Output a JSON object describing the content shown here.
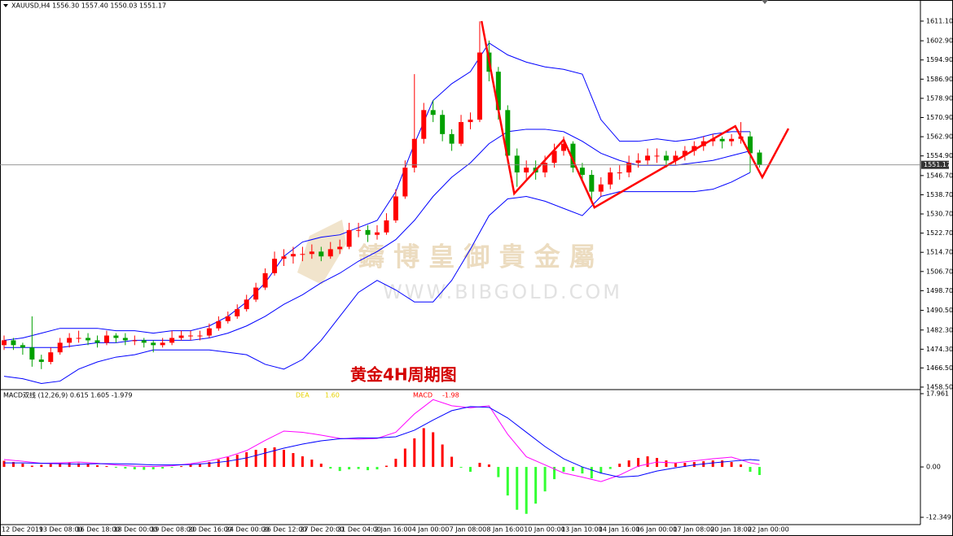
{
  "watermark": {
    "brand": "鑄 博 皇 御 貴 金 屬",
    "url": "WWW.BIBGOLD.COM"
  },
  "chart_data": [
    {
      "type": "candlestick",
      "title": "XAUUSD,H4 1556.30 1557.40 1550.03 1551.17",
      "annotation": "黄金4H周期图",
      "categories": [
        "12 Dec 2019",
        null,
        null,
        null,
        "13 Dec 08:00",
        null,
        null,
        null,
        "16 Dec 18:00",
        null,
        null,
        null,
        "18 Dec 00:00",
        null,
        null,
        null,
        "19 Dec 08:00",
        null,
        null,
        null,
        "20 Dec 16:00",
        null,
        null,
        null,
        "24 Dec 00:00",
        null,
        null,
        null,
        "26 Dec 12:00",
        null,
        null,
        null,
        "27 Dec 20:00",
        null,
        null,
        null,
        "31 Dec 04:00",
        null,
        null,
        null,
        "2 Jan 16:00",
        null,
        null,
        null,
        "4 Jan 00:00",
        null,
        null,
        null,
        "7 Jan 08:00",
        null,
        null,
        null,
        "8 Jan 16:00",
        null,
        null,
        null,
        "10 Jan 00:00",
        null,
        null,
        null,
        "13 Jan 10:00",
        null,
        null,
        null,
        "14 Jan 16:00",
        null,
        null,
        null,
        "16 Jan 00:00",
        null,
        null,
        null,
        "17 Jan 08:00",
        null,
        null,
        null,
        "20 Jan 18:00",
        null,
        null,
        null,
        "22 Jan 00:00",
        null
      ],
      "open": [
        1476,
        1478,
        1476,
        1475,
        1470,
        1469,
        1473,
        1477,
        1479,
        1479,
        1478,
        1477,
        1480,
        1479,
        1478,
        1478,
        1477,
        1476,
        1477,
        1479,
        1480,
        1480,
        1480,
        1483,
        1486,
        1488,
        1491,
        1495,
        1500,
        1506,
        1512,
        1513,
        1514,
        1514,
        1515,
        1513,
        1516,
        1517,
        1524,
        1524,
        1522,
        1523,
        1528,
        1538,
        1550,
        1562,
        1574,
        1572,
        1564,
        1560,
        1569,
        1570,
        1598,
        1590,
        1574,
        1555,
        1548,
        1550,
        1548,
        1552,
        1557,
        1560,
        1550,
        1547,
        1540,
        1543,
        1548,
        1548,
        1552,
        1553,
        1555,
        1555,
        1553,
        1555,
        1557,
        1559,
        1561,
        1562,
        1561,
        1562,
        1563,
        1556.3
      ],
      "high": [
        1480,
        1479,
        1477,
        1488,
        1472,
        1475,
        1479,
        1481,
        1482,
        1481,
        1480,
        1482,
        1481,
        1481,
        1480,
        1479,
        1478,
        1479,
        1482,
        1482,
        1482,
        1482,
        1485,
        1488,
        1490,
        1493,
        1497,
        1502,
        1508,
        1515,
        1516,
        1517,
        1517,
        1518,
        1517,
        1519,
        1520,
        1527,
        1527,
        1526,
        1526,
        1531,
        1541,
        1553,
        1589,
        1577,
        1578,
        1574,
        1566,
        1572,
        1573,
        1611,
        1603,
        1592,
        1576,
        1558,
        1553,
        1553,
        1555,
        1560,
        1563,
        1561,
        1552,
        1549,
        1546,
        1550,
        1551,
        1555,
        1556,
        1558,
        1558,
        1557,
        1557,
        1559,
        1561,
        1563,
        1564,
        1563,
        1564,
        1569,
        1565,
        1557.4
      ],
      "low": [
        1474,
        1474,
        1472,
        1467,
        1466,
        1468,
        1472,
        1475,
        1477,
        1476,
        1475,
        1476,
        1477,
        1476,
        1476,
        1475,
        1473,
        1475,
        1476,
        1478,
        1478,
        1478,
        1479,
        1482,
        1485,
        1487,
        1490,
        1494,
        1499,
        1505,
        1509,
        1510,
        1511,
        1512,
        1511,
        1512,
        1514,
        1516,
        1521,
        1519,
        1520,
        1522,
        1527,
        1537,
        1548,
        1560,
        1569,
        1561,
        1557,
        1559,
        1566,
        1569,
        1586,
        1570,
        1552,
        1542,
        1545,
        1545,
        1546,
        1550,
        1555,
        1548,
        1544,
        1536,
        1538,
        1541,
        1545,
        1546,
        1550,
        1551,
        1552,
        1550,
        1551,
        1553,
        1555,
        1557,
        1559,
        1558,
        1559,
        1560,
        1548,
        1550.03
      ],
      "close": [
        1478,
        1476,
        1475,
        1470,
        1469,
        1473,
        1477,
        1479,
        1479,
        1478,
        1477,
        1480,
        1479,
        1478,
        1478,
        1477,
        1476,
        1477,
        1479,
        1480,
        1480,
        1480,
        1483,
        1486,
        1488,
        1491,
        1495,
        1500,
        1506,
        1512,
        1513,
        1514,
        1514,
        1515,
        1513,
        1516,
        1517,
        1524,
        1524,
        1522,
        1523,
        1528,
        1538,
        1550,
        1562,
        1574,
        1572,
        1564,
        1560,
        1569,
        1570,
        1598,
        1590,
        1574,
        1555,
        1548,
        1550,
        1548,
        1552,
        1557,
        1560,
        1550,
        1547,
        1540,
        1543,
        1548,
        1548,
        1552,
        1553,
        1555,
        1555,
        1553,
        1555,
        1557,
        1559,
        1561,
        1562,
        1561,
        1562,
        1563,
        1556,
        1551.17
      ],
      "up_color": "#ff0000",
      "down_color": "#00a000",
      "last_price": 1551.17,
      "bands": {
        "color": "#0000ff",
        "x": [
          0,
          2,
          4,
          6,
          8,
          10,
          12,
          14,
          16,
          18,
          20,
          22,
          24,
          26,
          28,
          30,
          32,
          34,
          36,
          38,
          40,
          42,
          44,
          46,
          48,
          50,
          52,
          54,
          56,
          58,
          60,
          62,
          64,
          66,
          68,
          70,
          72,
          74,
          76,
          78,
          80
        ],
        "upper": [
          1478,
          1479,
          1481,
          1483,
          1483,
          1483,
          1482,
          1482,
          1481,
          1482,
          1482,
          1484,
          1488,
          1494,
          1502,
          1513,
          1519,
          1521,
          1522,
          1525,
          1528,
          1540,
          1560,
          1578,
          1585,
          1590,
          1602,
          1597,
          1594,
          1592,
          1591,
          1589,
          1570,
          1561,
          1561,
          1562,
          1561,
          1562,
          1564,
          1565,
          1565
        ],
        "middle": [
          1475,
          1475,
          1475,
          1475,
          1476,
          1477,
          1477,
          1478,
          1478,
          1478,
          1478,
          1479,
          1481,
          1484,
          1488,
          1493,
          1497,
          1502,
          1506,
          1511,
          1515,
          1520,
          1528,
          1538,
          1546,
          1552,
          1560,
          1565,
          1566,
          1566,
          1565,
          1561,
          1556,
          1553,
          1551,
          1551,
          1551,
          1552,
          1553,
          1555,
          1557
        ],
        "lower": [
          1463,
          1462,
          1460,
          1461,
          1466,
          1469,
          1471,
          1472,
          1474,
          1474,
          1474,
          1474,
          1473,
          1472,
          1468,
          1466,
          1470,
          1478,
          1488,
          1498,
          1503,
          1499,
          1494,
          1494,
          1503,
          1516,
          1530,
          1537,
          1538,
          1536,
          1533,
          1530,
          1538,
          1540,
          1540,
          1540,
          1540,
          1540,
          1541,
          1544,
          1548
        ]
      },
      "zigzag": {
        "color": "#ff0000",
        "x": [
          51.2,
          54.7,
          60,
          63.3,
          78.4,
          81.3,
          84.1
        ],
        "values": [
          1611.1,
          1539.2,
          1561.6,
          1533.4,
          1567.3,
          1546,
          1566.3
        ]
      },
      "ylim": [
        1457.8,
        1619.9
      ],
      "yticks": [
        {
          "value": 1458.5,
          "label": "1458.50"
        },
        {
          "value": 1466.5,
          "label": "1466.50"
        },
        {
          "value": 1474.3,
          "label": "1474.30"
        },
        {
          "value": 1482.3,
          "label": "1482.30"
        },
        {
          "value": 1490.5,
          "label": "1490.50"
        },
        {
          "value": 1498.7,
          "label": "1498.70"
        },
        {
          "value": 1506.7,
          "label": "1506.70"
        },
        {
          "value": 1514.7,
          "label": "1514.70"
        },
        {
          "value": 1522.7,
          "label": "1522.70"
        },
        {
          "value": 1530.7,
          "label": "1530.70"
        },
        {
          "value": 1538.7,
          "label": "1538.70"
        },
        {
          "value": 1546.7,
          "label": "1546.70"
        },
        {
          "value": 1554.9,
          "label": "1554.90"
        },
        {
          "value": 1562.9,
          "label": "1562.90"
        },
        {
          "value": 1570.9,
          "label": "1570.90"
        },
        {
          "value": 1578.9,
          "label": "1578.90"
        },
        {
          "value": 1586.9,
          "label": "1586.90"
        },
        {
          "value": 1594.9,
          "label": "1594.90"
        },
        {
          "value": 1602.9,
          "label": "1602.90"
        },
        {
          "value": 1611.1,
          "label": "1611.10"
        }
      ]
    },
    {
      "type": "macd",
      "title": "MACD双线 (12,26,9) 0.615 1.605 -1.979",
      "legend": [
        {
          "name": "DEA",
          "value": "1.60",
          "color": "#e6d200"
        },
        {
          "name": "MACD",
          "value": "-1.98",
          "color": "#ff0000"
        }
      ],
      "values": [
        1.5,
        1.2,
        0.8,
        0.3,
        0.5,
        0.7,
        0.9,
        1.0,
        0.9,
        0.7,
        0.4,
        0.2,
        -0.2,
        -0.4,
        -0.6,
        -0.7,
        -0.6,
        -0.4,
        -0.2,
        0.2,
        0.5,
        0.8,
        1.2,
        1.8,
        2.4,
        3.0,
        3.6,
        4.2,
        4.6,
        4.8,
        4.2,
        3.4,
        2.6,
        1.8,
        0.8,
        -0.4,
        -1.0,
        -0.6,
        -0.5,
        -0.8,
        -0.6,
        0.3,
        2.0,
        4.5,
        7.0,
        9.5,
        8.5,
        5.5,
        2.5,
        -0.2,
        -1.2,
        1.0,
        0.6,
        -2.5,
        -7.0,
        -10.5,
        -11.5,
        -9.0,
        -6.0,
        -3.0,
        -1.2,
        -1.0,
        -1.6,
        -2.8,
        -1.6,
        -0.5,
        0.8,
        1.6,
        2.2,
        2.6,
        2.2,
        1.6,
        1.0,
        1.0,
        1.2,
        1.4,
        1.6,
        1.6,
        1.2,
        0.6,
        -1.2,
        -1.979
      ],
      "pos_color": "#ff0000",
      "neg_color": "#33ff33",
      "lines": [
        {
          "color": "#ff00ff",
          "x": [
            0,
            2,
            4,
            6,
            8,
            10,
            12,
            14,
            16,
            18,
            20,
            22,
            24,
            26,
            28,
            30,
            32,
            34,
            36,
            38,
            40,
            42,
            44,
            46,
            48,
            50,
            52,
            54,
            56,
            58,
            60,
            62,
            64,
            66,
            68,
            70,
            72,
            74,
            76,
            78,
            80,
            81
          ],
          "values": [
            1.8,
            1.4,
            0.9,
            1.0,
            1.2,
            0.9,
            0.5,
            0.2,
            0.1,
            0.3,
            0.8,
            1.5,
            2.5,
            4.0,
            6.5,
            8.8,
            8.5,
            7.8,
            7.0,
            6.8,
            7.0,
            8.5,
            13.0,
            16.5,
            15.0,
            14.5,
            15.0,
            8.0,
            2.5,
            0.5,
            -1.5,
            -2.5,
            -3.6,
            -2.0,
            0.2,
            1.2,
            1.0,
            1.5,
            2.0,
            2.4,
            1.0,
            0.615
          ]
        },
        {
          "color": "#0000ff",
          "x": [
            0,
            2,
            4,
            6,
            8,
            10,
            12,
            14,
            16,
            18,
            20,
            22,
            24,
            26,
            28,
            30,
            32,
            34,
            36,
            38,
            40,
            42,
            44,
            46,
            48,
            50,
            52,
            54,
            56,
            58,
            60,
            62,
            64,
            66,
            68,
            70,
            72,
            74,
            76,
            78,
            80,
            81
          ],
          "values": [
            1.0,
            1.0,
            0.9,
            0.8,
            0.7,
            0.8,
            0.8,
            0.7,
            0.5,
            0.5,
            0.6,
            0.9,
            1.4,
            2.2,
            3.4,
            4.6,
            5.6,
            6.4,
            6.9,
            7.1,
            7.1,
            7.4,
            9.0,
            11.5,
            13.8,
            14.8,
            14.6,
            12.0,
            8.5,
            5.0,
            2.0,
            0.0,
            -1.5,
            -2.5,
            -2.2,
            -1.0,
            -0.2,
            0.5,
            1.0,
            1.4,
            1.8,
            1.605
          ]
        }
      ],
      "ylim": [
        -14.14,
        18.76
      ],
      "yticks": [
        17.961,
        {
          "value": 0,
          "label": "0.00"
        },
        -12.349
      ]
    }
  ]
}
